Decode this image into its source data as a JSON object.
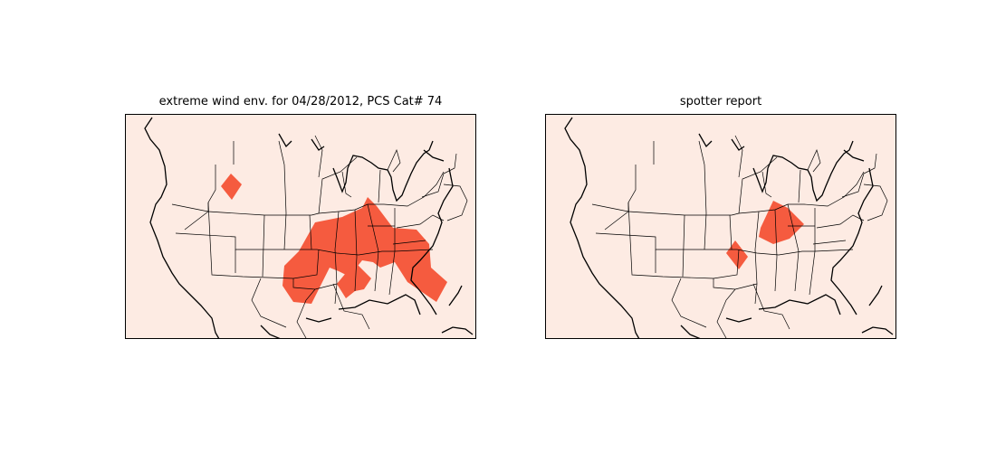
{
  "figure": {
    "panels": [
      {
        "title": "extreme wind env. for 04/28/2012, PCS Cat# 74"
      },
      {
        "title": "spotter report"
      }
    ]
  },
  "colors": {
    "background": "#fdebe3",
    "highlight": "#f55b3f",
    "borders": "#000000"
  }
}
